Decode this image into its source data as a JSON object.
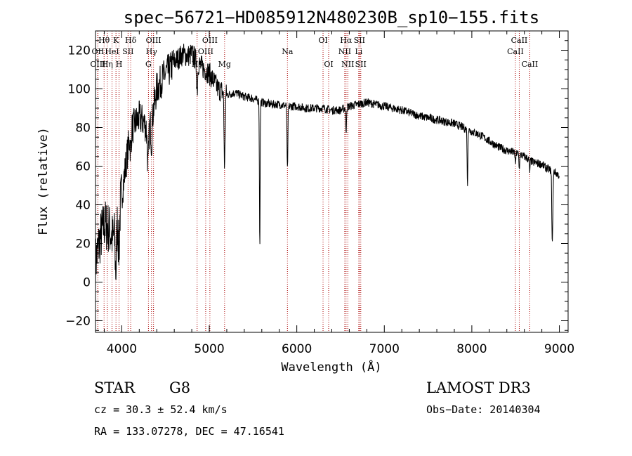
{
  "chart_data": {
    "type": "line",
    "title": "spec−56721−HD085912N480230B_sp10−155.fits",
    "xlabel": "Wavelength (Å)",
    "ylabel": "Flux (relative)",
    "xlim": [
      3700,
      9100
    ],
    "ylim": [
      -26,
      130
    ],
    "xticks": [
      4000,
      5000,
      6000,
      7000,
      8000,
      9000
    ],
    "yticks": [
      -20,
      0,
      20,
      40,
      60,
      80,
      100,
      120
    ],
    "continuum_anchors": {
      "x": [
        3700,
        3750,
        3800,
        3850,
        3900,
        3950,
        4000,
        4050,
        4100,
        4150,
        4200,
        4250,
        4300,
        4350,
        4400,
        4450,
        4500,
        4550,
        4600,
        4650,
        4700,
        4750,
        4800,
        4850,
        4900,
        4950,
        5000,
        5100,
        5200,
        5300,
        5400,
        5500,
        5600,
        5700,
        5800,
        5900,
        6000,
        6100,
        6200,
        6300,
        6400,
        6500,
        6600,
        6700,
        6800,
        6900,
        7000,
        7200,
        7400,
        7600,
        7800,
        7900,
        8000,
        8100,
        8200,
        8300,
        8400,
        8500,
        8600,
        8700,
        8800,
        8850,
        8900,
        8950,
        9000
      ],
      "y": [
        10,
        22,
        30,
        28,
        22,
        35,
        45,
        62,
        78,
        82,
        85,
        83,
        78,
        86,
        100,
        104,
        108,
        110,
        114,
        116,
        118,
        117,
        118,
        115,
        112,
        110,
        108,
        100,
        97,
        98,
        96,
        95,
        93,
        92,
        92,
        91,
        91,
        90,
        90,
        90,
        89,
        89,
        91,
        92,
        93,
        92,
        91,
        89,
        86,
        84,
        82,
        80,
        78,
        76,
        73,
        70,
        68,
        67,
        65,
        62,
        61,
        59,
        58,
        57,
        55
      ]
    },
    "absorption_features": [
      {
        "x": 3933,
        "depth": 25,
        "width": 8
      },
      {
        "x": 3968,
        "depth": 22,
        "width": 8
      },
      {
        "x": 4102,
        "depth": 10,
        "width": 6
      },
      {
        "x": 4300,
        "depth": 18,
        "width": 8
      },
      {
        "x": 4340,
        "depth": 12,
        "width": 6
      },
      {
        "x": 4861,
        "depth": 15,
        "width": 6
      },
      {
        "x": 5175,
        "depth": 38,
        "width": 6
      },
      {
        "x": 5577,
        "depth": 75,
        "width": 4
      },
      {
        "x": 5893,
        "depth": 33,
        "width": 5
      },
      {
        "x": 6563,
        "depth": 14,
        "width": 4
      },
      {
        "x": 7950,
        "depth": 30,
        "width": 4
      },
      {
        "x": 8498,
        "depth": 6,
        "width": 4
      },
      {
        "x": 8542,
        "depth": 8,
        "width": 4
      },
      {
        "x": 8662,
        "depth": 6,
        "width": 4
      },
      {
        "x": 8920,
        "depth": 38,
        "width": 6
      }
    ],
    "line_markers": [
      {
        "label": "Hθ",
        "x": 3798,
        "row": 1
      },
      {
        "label": "OII",
        "x": 3727,
        "row": 2
      },
      {
        "label": "OIII",
        "x": 3727,
        "row": 3
      },
      {
        "label": "Hη",
        "x": 3835,
        "row": 3
      },
      {
        "label": "HeI",
        "x": 3889,
        "row": 2
      },
      {
        "label": "K",
        "x": 3934,
        "row": 1
      },
      {
        "label": "SII",
        "x": 4072,
        "row": 2
      },
      {
        "label": "H",
        "x": 3969,
        "row": 3
      },
      {
        "label": "Hδ",
        "x": 4102,
        "row": 1
      },
      {
        "label": "OIII",
        "x": 4363,
        "row": 1
      },
      {
        "label": "Hγ",
        "x": 4340,
        "row": 2
      },
      {
        "label": "G",
        "x": 4305,
        "row": 3
      },
      {
        "label": "OIII",
        "x": 5007,
        "row": 1
      },
      {
        "label": "OIII",
        "x": 4959,
        "row": 2
      },
      {
        "label": "Hβ",
        "x": 4861,
        "row": 3
      },
      {
        "label": "Mg",
        "x": 5175,
        "row": 3
      },
      {
        "label": "Na",
        "x": 5893,
        "row": 2
      },
      {
        "label": "OI",
        "x": 6300,
        "row": 1
      },
      {
        "label": "OI",
        "x": 6364,
        "row": 3
      },
      {
        "label": "Hα",
        "x": 6563,
        "row": 1
      },
      {
        "label": "SII",
        "x": 6716,
        "row": 1
      },
      {
        "label": "NII",
        "x": 6548,
        "row": 2
      },
      {
        "label": "Li",
        "x": 6708,
        "row": 2
      },
      {
        "label": "NII",
        "x": 6583,
        "row": 3
      },
      {
        "label": "SII",
        "x": 6731,
        "row": 3
      },
      {
        "label": "CaII",
        "x": 8542,
        "row": 1
      },
      {
        "label": "CaII",
        "x": 8498,
        "row": 2
      },
      {
        "label": "CaII",
        "x": 8662,
        "row": 3
      }
    ]
  },
  "info": {
    "object_type": "STAR",
    "subclass": "G8",
    "survey": "LAMOST DR3",
    "cz": "cz = 30.3 ± 52.4 km/s",
    "obs_date": "Obs−Date: 20140304",
    "coords": "RA = 133.07278, DEC =  47.16541"
  },
  "colors": {
    "spectrum": "#000000",
    "line_marker": "#aa0000"
  }
}
